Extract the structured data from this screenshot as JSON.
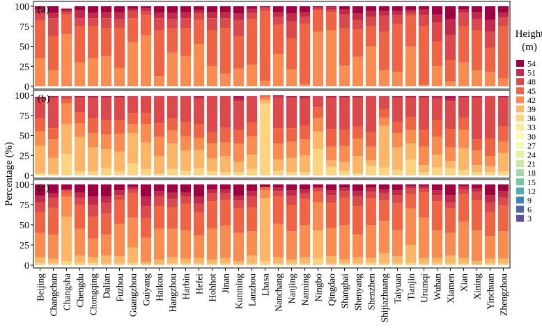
{
  "chart_data": {
    "type": "bar",
    "stacked": true,
    "ylabel": "Percentage (%)",
    "ylim": [
      0,
      100
    ],
    "yticks": [
      0,
      25,
      50,
      75,
      100
    ],
    "categories": [
      "Beijing",
      "Changchun",
      "Changsha",
      "Chengdu",
      "Chongqing",
      "Dalian",
      "Fuzhou",
      "Guangzhou",
      "Guiyang",
      "Haikou",
      "Hangzhou",
      "Harbin",
      "Hefei",
      "Hohhot",
      "Jinan",
      "Kunming",
      "Lanzhou",
      "Lhasa",
      "Nanchang",
      "Nanjing",
      "Nanning",
      "Ningbo",
      "Qingdao",
      "Shanghai",
      "Shenyang",
      "Shenzhen",
      "Shijiazhuang",
      "Taiyuan",
      "Tianjin",
      "Urumqi",
      "Wuhan",
      "Xiamen",
      "Xian",
      "Xining",
      "Yinchuan",
      "Zhengzhou"
    ],
    "legend": {
      "title_line1": "Height",
      "title_line2": "(m)",
      "labels": [
        "54",
        "51",
        "48",
        "45",
        "42",
        "39",
        "36",
        "33",
        "30",
        "27",
        "24",
        "21",
        "18",
        "15",
        "12",
        "9",
        "6",
        "3"
      ],
      "colors": [
        "#9e0142",
        "#c2294a",
        "#dc494c",
        "#ee6445",
        "#f88c51",
        "#fdb567",
        "#fed480",
        "#fee999",
        "#fff8b1",
        "#f4fab0",
        "#e2f4a2",
        "#c7e9a0",
        "#a0d9a3",
        "#77c7a4",
        "#55a9b0",
        "#3c87ba",
        "#4f64ad",
        "#5e4fa2"
      ]
    },
    "panels": [
      {
        "label": "(a)",
        "series_values": [
          [
            35,
            20,
            65,
            30,
            35,
            38,
            23,
            55,
            64,
            13,
            42,
            38,
            53,
            25,
            16,
            22,
            27,
            7,
            40,
            21,
            3,
            68,
            70,
            26,
            37,
            50,
            20,
            18,
            50,
            2,
            25,
            6,
            30,
            20,
            18,
            10
          ],
          [
            47,
            43,
            25,
            45,
            40,
            35,
            50,
            30,
            25,
            57,
            30,
            35,
            30,
            45,
            57,
            41,
            57,
            87,
            37,
            39,
            75,
            27,
            23,
            46,
            34,
            25,
            48,
            60,
            38,
            73,
            31,
            27,
            45,
            50,
            30,
            65
          ],
          [
            9,
            22,
            3,
            10,
            10,
            12,
            11,
            9,
            5,
            15,
            12,
            12,
            8,
            15,
            12,
            20,
            8,
            4,
            10,
            21,
            9,
            2,
            3,
            18,
            12,
            12,
            20,
            11,
            4,
            14,
            24,
            31,
            17,
            14,
            20,
            11
          ],
          [
            5,
            7,
            2,
            10,
            7,
            8,
            8,
            3,
            4,
            7,
            8,
            8,
            4,
            8,
            8,
            8,
            5,
            1,
            6,
            10,
            6,
            2,
            3,
            6,
            8,
            7,
            6,
            5,
            3,
            7,
            10,
            20,
            4,
            9,
            15,
            6
          ],
          [
            4,
            8,
            2,
            5,
            8,
            7,
            8,
            3,
            2,
            8,
            8,
            7,
            5,
            7,
            7,
            9,
            3,
            1,
            7,
            9,
            7,
            1,
            1,
            4,
            9,
            6,
            6,
            6,
            5,
            4,
            10,
            16,
            4,
            7,
            17,
            8
          ]
        ]
      },
      {
        "label": "(b)",
        "series_values": [
          [
            3,
            2,
            27,
            5,
            5,
            9,
            5,
            15,
            8,
            2,
            8,
            6,
            9,
            5,
            4,
            4,
            8,
            90,
            6,
            4,
            4,
            33,
            11,
            5,
            3,
            12,
            10,
            7,
            20,
            4,
            10,
            9,
            7,
            4,
            4,
            5
          ],
          [
            34,
            20,
            37,
            43,
            30,
            24,
            25,
            38,
            33,
            22,
            32,
            25,
            23,
            16,
            20,
            13,
            18,
            4,
            14,
            18,
            21,
            22,
            8,
            12,
            21,
            7,
            52,
            28,
            20,
            9,
            16,
            9,
            27,
            9,
            8,
            23
          ],
          [
            18,
            23,
            26,
            17,
            18,
            18,
            22,
            11,
            23,
            24,
            16,
            18,
            15,
            19,
            17,
            23,
            23,
            3,
            20,
            20,
            20,
            17,
            17,
            20,
            22,
            17,
            10,
            18,
            17,
            23,
            22,
            17,
            23,
            18,
            12,
            14
          ],
          [
            16,
            14,
            5,
            14,
            18,
            18,
            17,
            14,
            14,
            17,
            15,
            18,
            17,
            14,
            19,
            17,
            17,
            2,
            19,
            17,
            17,
            13,
            22,
            20,
            15,
            18,
            11,
            14,
            16,
            21,
            21,
            23,
            15,
            14,
            22,
            19
          ],
          [
            24,
            38,
            3,
            18,
            26,
            28,
            28,
            20,
            20,
            33,
            27,
            31,
            32,
            44,
            38,
            36,
            32,
            1,
            38,
            38,
            34,
            13,
            39,
            40,
            36,
            44,
            15,
            30,
            24,
            40,
            27,
            35,
            25,
            52,
            52,
            36
          ],
          [
            2,
            1,
            1,
            1,
            1,
            1,
            1,
            1,
            1,
            1,
            1,
            1,
            2,
            1,
            1,
            4,
            1,
            0,
            2,
            1,
            2,
            1,
            1,
            1,
            1,
            1,
            1,
            1,
            1,
            1,
            2,
            4,
            1,
            1,
            1,
            1
          ],
          [
            1,
            1,
            0,
            1,
            1,
            1,
            1,
            0,
            0,
            0,
            0,
            0,
            1,
            0,
            0,
            2,
            0,
            0,
            1,
            1,
            1,
            0,
            1,
            1,
            1,
            0,
            0,
            1,
            1,
            1,
            1,
            2,
            1,
            1,
            0,
            1
          ]
        ]
      },
      {
        "label": "(c)",
        "series_values": [
          [
            3,
            2,
            5,
            3,
            3,
            2,
            2,
            3,
            1,
            1,
            2,
            2,
            2,
            2,
            2,
            1,
            2,
            5,
            2,
            2,
            2,
            8,
            2,
            2,
            2,
            3,
            2,
            2,
            3,
            2,
            2,
            2,
            2,
            1,
            2,
            2
          ],
          [
            7,
            6,
            55,
            9,
            7,
            10,
            9,
            19,
            3,
            6,
            8,
            6,
            7,
            5,
            7,
            4,
            10,
            78,
            8,
            5,
            8,
            35,
            9,
            5,
            8,
            6,
            13,
            9,
            22,
            7,
            7,
            10,
            7,
            4,
            6,
            6
          ],
          [
            30,
            30,
            25,
            33,
            23,
            26,
            40,
            37,
            30,
            38,
            35,
            35,
            28,
            38,
            40,
            35,
            30,
            10,
            41,
            35,
            40,
            35,
            35,
            43,
            28,
            41,
            40,
            32,
            45,
            50,
            34,
            28,
            45,
            38,
            28,
            34
          ],
          [
            26,
            33,
            6,
            30,
            27,
            26,
            30,
            30,
            24,
            28,
            27,
            33,
            28,
            34,
            32,
            30,
            30,
            3,
            34,
            33,
            32,
            13,
            31,
            34,
            35,
            33,
            26,
            34,
            18,
            31,
            36,
            30,
            34,
            38,
            30,
            32
          ],
          [
            12,
            12,
            2,
            8,
            15,
            13,
            6,
            5,
            15,
            12,
            10,
            9,
            11,
            10,
            8,
            10,
            13,
            1,
            7,
            11,
            7,
            4,
            10,
            8,
            12,
            8,
            8,
            10,
            7,
            5,
            8,
            8,
            6,
            10,
            12,
            10
          ],
          [
            8,
            6,
            1,
            7,
            10,
            8,
            6,
            3,
            12,
            7,
            8,
            5,
            9,
            5,
            5,
            6,
            7,
            0,
            4,
            7,
            5,
            2,
            6,
            4,
            7,
            5,
            5,
            6,
            3,
            3,
            6,
            9,
            4,
            4,
            9,
            8
          ],
          [
            14,
            11,
            6,
            10,
            15,
            15,
            7,
            3,
            15,
            8,
            10,
            10,
            15,
            6,
            6,
            14,
            8,
            3,
            4,
            7,
            6,
            3,
            7,
            4,
            8,
            4,
            6,
            7,
            2,
            2,
            7,
            13,
            2,
            5,
            13,
            8
          ]
        ]
      }
    ]
  }
}
